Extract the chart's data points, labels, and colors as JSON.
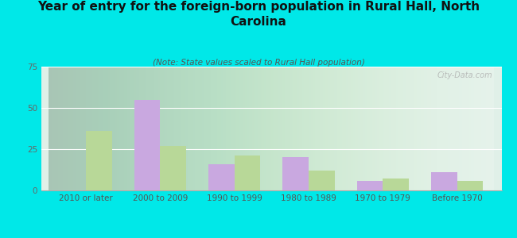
{
  "title": "Year of entry for the foreign-born population in Rural Hall, North\nCarolina",
  "subtitle": "(Note: State values scaled to Rural Hall population)",
  "categories": [
    "2010 or later",
    "2000 to 2009",
    "1990 to 1999",
    "1980 to 1989",
    "1970 to 1979",
    "Before 1970"
  ],
  "rural_hall": [
    0,
    55,
    16,
    20,
    6,
    11
  ],
  "north_carolina": [
    36,
    27,
    21,
    12,
    7,
    6
  ],
  "rural_hall_color": "#c9a8e0",
  "nc_color": "#b8d898",
  "background_color": "#00e8e8",
  "plot_bg": "#e0f0e8",
  "ylim": [
    0,
    75
  ],
  "yticks": [
    0,
    25,
    50,
    75
  ],
  "bar_width": 0.35,
  "title_fontsize": 11,
  "subtitle_fontsize": 7.5,
  "legend_fontsize": 8.5,
  "tick_fontsize": 7.5,
  "watermark": "City-Data.com"
}
